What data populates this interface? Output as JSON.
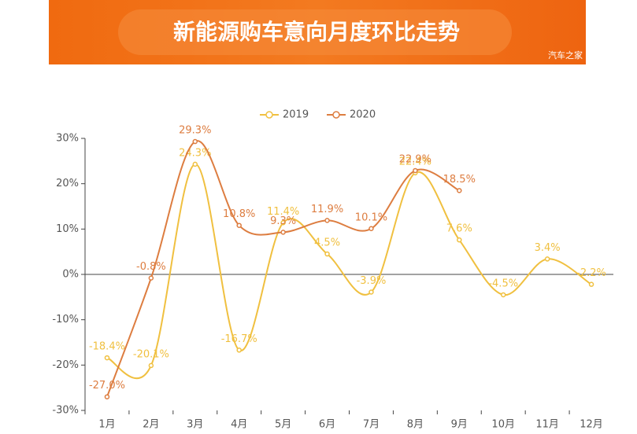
{
  "header": {
    "title": "新能源购车意向月度环比走势",
    "watermark": "汽车之家"
  },
  "chart_data": {
    "type": "line",
    "categories": [
      "1月",
      "2月",
      "3月",
      "4月",
      "5月",
      "6月",
      "7月",
      "8月",
      "9月",
      "10月",
      "11月",
      "12月"
    ],
    "series": [
      {
        "name": "2019",
        "color": "#f0c040",
        "values": [
          -18.4,
          -20.1,
          24.3,
          -16.7,
          11.4,
          4.5,
          -3.9,
          22.4,
          7.6,
          -4.5,
          3.4,
          -2.2
        ],
        "value_labels": [
          "-18.4%",
          "-20.1%",
          "24.3%",
          "-16.7%",
          "11.4%",
          "4.5%",
          "-3.9%",
          "22.4%",
          "7.6%",
          "-4.5%",
          "3.4%",
          "-2.2%"
        ]
      },
      {
        "name": "2020",
        "color": "#dd7d40",
        "values": [
          -27.0,
          -0.8,
          29.3,
          10.8,
          9.3,
          11.9,
          10.1,
          22.9,
          18.5,
          null,
          null,
          null
        ],
        "value_labels": [
          "-27.0%",
          "-0.8%",
          "29.3%",
          "10.8%",
          "9.3%",
          "11.9%",
          "10.1%",
          "22.9%",
          "18.5%",
          null,
          null,
          null
        ]
      }
    ],
    "ylim": [
      -30,
      30
    ],
    "yticks": [
      {
        "value": -30,
        "label": "-30%"
      },
      {
        "value": -20,
        "label": "-20%"
      },
      {
        "value": -10,
        "label": "-10%"
      },
      {
        "value": 0,
        "label": "0%"
      },
      {
        "value": 10,
        "label": "10%"
      },
      {
        "value": 20,
        "label": "20%"
      },
      {
        "value": 30,
        "label": "30%"
      }
    ],
    "legend": "top"
  }
}
